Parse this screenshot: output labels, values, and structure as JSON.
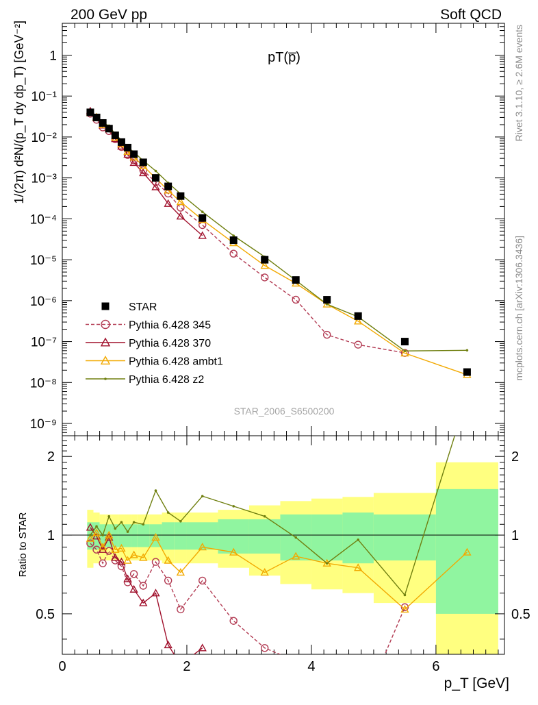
{
  "header": {
    "left": "200 GeV pp",
    "right": "Soft QCD"
  },
  "side": {
    "rivet": "Rivet 3.1.10, ≥ 2.6M events",
    "mcplots": "mcplots.cern.ch [arXiv:1306.3436]"
  },
  "chart_data": {
    "type": "line",
    "title": "pT(p̅)",
    "analysis_id": "STAR_2006_S6500200",
    "xlabel": "p_T [GeV]",
    "ylabel": "1/(2π) d²N/(p_T dy dp_T) [GeV⁻²]",
    "ratio_ylabel": "Ratio to STAR",
    "xlim": [
      0,
      7.1
    ],
    "ylim": [
      5e-10,
      6
    ],
    "yscale": "log",
    "ratio_ylim": [
      0.35,
      2.4
    ],
    "x_ticks": [
      "0",
      "2",
      "4",
      "6"
    ],
    "y_ticks": [
      "10⁻⁹",
      "10⁻⁸",
      "10⁻⁷",
      "10⁻⁶",
      "10⁻⁵",
      "10⁻⁴",
      "10⁻³",
      "10⁻²",
      "10⁻¹",
      "1"
    ],
    "ratio_ticks": [
      "0.5",
      "1",
      "2"
    ],
    "x": [
      0.45,
      0.55,
      0.65,
      0.75,
      0.85,
      0.95,
      1.05,
      1.15,
      1.3,
      1.5,
      1.7,
      1.9,
      2.25,
      2.75,
      3.25,
      3.75,
      4.25,
      4.75,
      5.5,
      6.5
    ],
    "bin_edges": [
      0.4,
      0.5,
      0.6,
      0.7,
      0.8,
      0.9,
      1.0,
      1.1,
      1.2,
      1.4,
      1.6,
      1.8,
      2.0,
      2.5,
      3.0,
      3.5,
      4.0,
      4.5,
      5.0,
      6.0,
      7.0
    ],
    "data": {
      "name": "STAR",
      "values": [
        0.04,
        0.03,
        0.022,
        0.016,
        0.011,
        0.0075,
        0.0055,
        0.0038,
        0.0024,
        0.001,
        0.00062,
        0.00036,
        0.000105,
        3e-05,
        1e-05,
        3.2e-06,
        1.05e-06,
        4.2e-07,
        1e-07,
        1.8e-08
      ],
      "band_stat": [
        0.12,
        0.12,
        0.1,
        0.1,
        0.1,
        0.1,
        0.1,
        0.1,
        0.1,
        0.1,
        0.12,
        0.12,
        0.12,
        0.15,
        0.15,
        0.2,
        0.2,
        0.22,
        0.2,
        0.5
      ],
      "band_total": [
        0.25,
        0.22,
        0.2,
        0.2,
        0.2,
        0.2,
        0.2,
        0.2,
        0.2,
        0.2,
        0.22,
        0.22,
        0.22,
        0.25,
        0.3,
        0.35,
        0.38,
        0.4,
        0.45,
        0.9
      ]
    },
    "series": [
      {
        "name": "Pythia 6.428 345",
        "color": "#b23a52",
        "dashed": true,
        "marker": "circle",
        "ratio": [
          0.93,
          0.88,
          0.78,
          0.87,
          0.8,
          0.76,
          0.66,
          0.71,
          0.64,
          0.79,
          0.67,
          0.52,
          0.67,
          0.47,
          0.37,
          0.33,
          0.14,
          0.2,
          0.53,
          null
        ]
      },
      {
        "name": "Pythia 6.428 370",
        "color": "#a0102c",
        "dashed": false,
        "marker": "triangle",
        "ratio": [
          1.07,
          0.99,
          0.88,
          0.98,
          0.82,
          0.79,
          0.68,
          0.62,
          0.55,
          0.6,
          0.38,
          0.32,
          0.37,
          null,
          null,
          null,
          null,
          null,
          null,
          null
        ]
      },
      {
        "name": "Pythia 6.428 ambt1",
        "color": "#f2a900",
        "dashed": false,
        "marker": "triangle",
        "ratio": [
          0.97,
          1.02,
          0.9,
          1.0,
          0.88,
          0.89,
          0.8,
          0.84,
          0.82,
          0.98,
          0.8,
          0.72,
          0.9,
          0.86,
          0.72,
          0.83,
          0.78,
          0.75,
          0.52,
          0.86
        ]
      },
      {
        "name": "Pythia 6.428 z2",
        "color": "#6f7f0f",
        "dashed": false,
        "marker": "dot",
        "ratio": [
          1.0,
          1.08,
          1.0,
          1.18,
          1.06,
          1.12,
          1.03,
          1.12,
          1.1,
          1.48,
          1.22,
          1.13,
          1.41,
          1.29,
          1.18,
          0.98,
          0.78,
          0.96,
          0.59,
          3.4
        ]
      }
    ]
  }
}
